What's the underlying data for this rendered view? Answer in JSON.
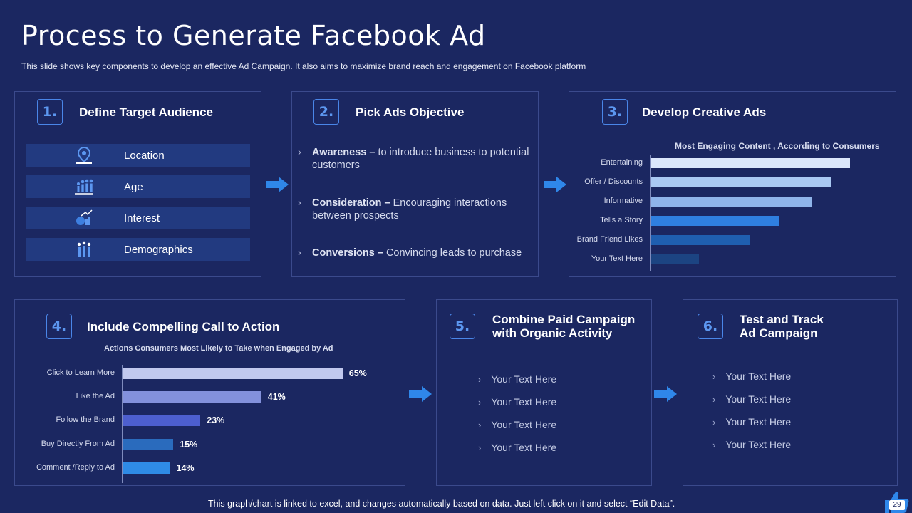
{
  "title": "Process to Generate Facebook Ad",
  "subtitle": "This slide shows key components to develop an effective Ad Campaign. It also aims to maximize brand reach and engagement on Facebook platform",
  "steps": [
    {
      "num": "1.",
      "title": "Define Target Audience"
    },
    {
      "num": "2.",
      "title": "Pick Ads Objective"
    },
    {
      "num": "3.",
      "title": "Develop Creative Ads"
    },
    {
      "num": "4.",
      "title": "Include Compelling Call to Action"
    },
    {
      "num": "5.",
      "title_line1": "Combine Paid Campaign",
      "title_line2": "with Organic Activity"
    },
    {
      "num": "6.",
      "title_line1": "Test and Track",
      "title_line2": "Ad Campaign"
    }
  ],
  "audience": [
    {
      "label": "Location",
      "icon": "location-pin-icon"
    },
    {
      "label": "Age",
      "icon": "people-ages-icon"
    },
    {
      "label": "Interest",
      "icon": "interest-growth-icon"
    },
    {
      "label": "Demographics",
      "icon": "demographics-icon"
    }
  ],
  "objectives": [
    {
      "bold": "Awareness – ",
      "text": "to introduce business to potential customers"
    },
    {
      "bold": "Consideration – ",
      "text": "Encouraging interactions between prospects"
    },
    {
      "bold": "Conversions – ",
      "text": "Convincing leads to purchase"
    }
  ],
  "combine_items": [
    "Your Text Here",
    "Your Text Here",
    "Your Text Here",
    "Your Text Here"
  ],
  "track_items": [
    "Your Text Here",
    "Your Text Here",
    "Your Text Here",
    "Your Text Here"
  ],
  "footer": "This graph/chart is linked to excel, and changes automatically based on data. Just left click on it and select “Edit Data”.",
  "page_number": "29",
  "chart_data": [
    {
      "type": "bar",
      "orientation": "horizontal",
      "title": "Most Engaging  Content  , According to Consumers",
      "categories": [
        "Entertaining",
        "Offer / Discounts",
        "Informative",
        "Tells a Story",
        "Brand Friend Likes",
        "Your Text Here"
      ],
      "values": [
        95,
        86,
        77,
        61,
        47,
        23
      ],
      "xlim": [
        0,
        100
      ],
      "colors": [
        "#dbe6fb",
        "#a9c8f2",
        "#8fb4ea",
        "#2f7fe0",
        "#1f5fb0",
        "#1c4482"
      ],
      "data_labels": false,
      "grid": false,
      "legend": "none"
    },
    {
      "type": "bar",
      "orientation": "horizontal",
      "title": "Actions Consumers Most Likely to Take when Engaged by Ad",
      "categories": [
        "Click to Learn More",
        "Like the Ad",
        "Follow the Brand",
        "Buy Directly From Ad",
        "Comment /Reply to Ad"
      ],
      "values": [
        65,
        41,
        23,
        15,
        14
      ],
      "value_labels": [
        "65%",
        "41%",
        "23%",
        "15%",
        "14%"
      ],
      "unit": "%",
      "xlim": [
        0,
        100
      ],
      "colors": [
        "#c1c8ee",
        "#8391dc",
        "#4d5fcf",
        "#2a6bbd",
        "#2f8be6"
      ],
      "data_labels": true,
      "grid": false,
      "legend": "none"
    }
  ]
}
